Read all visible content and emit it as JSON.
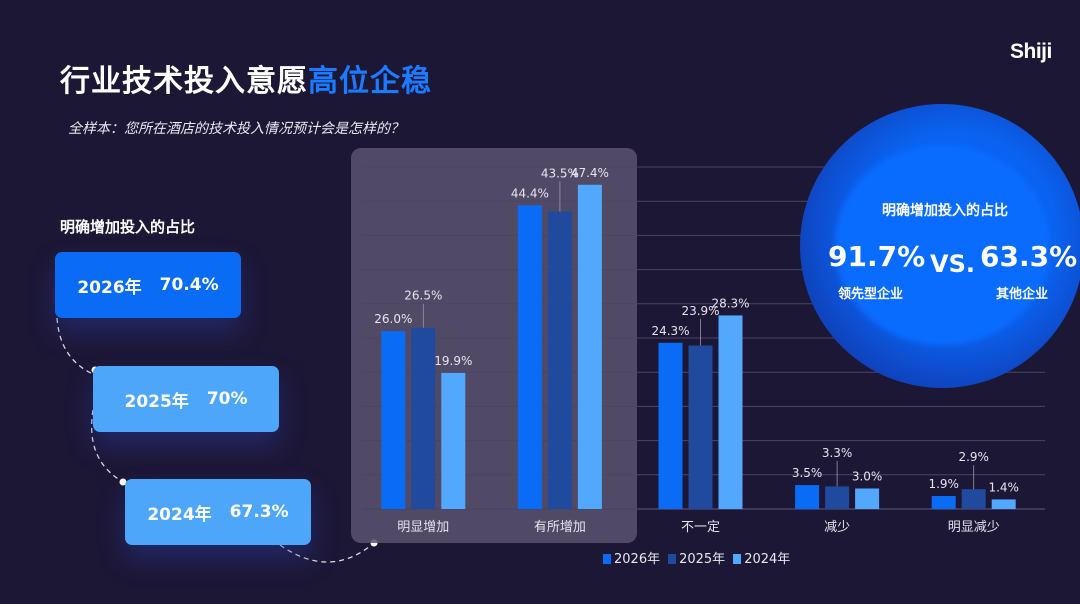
{
  "header": {
    "title_main": "行业技术投入意愿",
    "title_highlight": "高位企稳",
    "subtitle": "全样本：您所在酒店的技术投入情况预计会是怎样的？",
    "logo": "Shiji"
  },
  "left_panel": {
    "label": "明确增加投入的占比",
    "items": [
      {
        "year": "2026年",
        "value": "70.4%",
        "color": "#0a6cf5"
      },
      {
        "year": "2025年",
        "value": "70%",
        "color": "#4ea6fb"
      },
      {
        "year": "2024年",
        "value": "67.3%",
        "color": "#4ea6fb"
      }
    ]
  },
  "circle": {
    "title": "明确增加投入的占比",
    "left_value": "91.7%",
    "left_label": "领先型企业",
    "vs": "VS.",
    "right_value": "63.3%",
    "right_label": "其他企业"
  },
  "colors": {
    "s2026": "#0a6cf5",
    "s2025": "#204a9e",
    "s2024": "#52a8ff",
    "highlight": "#5a5470",
    "grid": "#4a4566"
  },
  "chart_data": {
    "type": "bar",
    "categories": [
      "明显增加",
      "有所增加",
      "不一定",
      "减少",
      "明显减少"
    ],
    "series": [
      {
        "name": "2026年",
        "values": [
          26.0,
          44.4,
          24.3,
          3.5,
          1.9
        ],
        "labels": [
          "26.0%",
          "44.4%",
          "24.3%",
          "3.5%",
          "1.9%"
        ]
      },
      {
        "name": "2025年",
        "values": [
          26.5,
          43.5,
          23.9,
          3.3,
          2.9
        ],
        "labels": [
          "26.5%",
          "43.5%",
          "23.9%",
          "3.3%",
          "2.9%"
        ]
      },
      {
        "name": "2024年",
        "values": [
          19.9,
          47.4,
          28.3,
          3.0,
          1.4
        ],
        "labels": [
          "19.9%",
          "47.4%",
          "28.3%",
          "3.0%",
          "1.4%"
        ]
      }
    ],
    "ylim": [
      0,
      50
    ],
    "grid": true,
    "legend": "bottom",
    "highlighted_categories": [
      "明显增加",
      "有所增加"
    ]
  }
}
